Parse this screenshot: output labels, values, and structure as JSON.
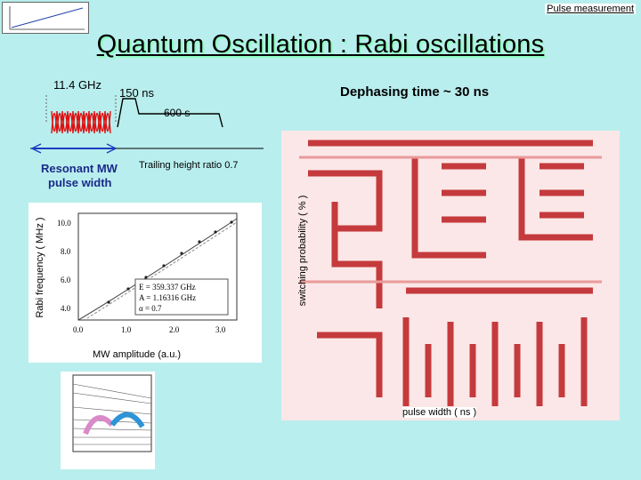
{
  "header": {
    "nav_link": "Pulse measurement",
    "title": "Quantum Oscillation : Rabi oscillations"
  },
  "pulse_diagram": {
    "freq_label": "11.4 GHz",
    "duration_label": "150 ns",
    "trailing_label": "600 s",
    "dephasing_label": "Dephasing time ~ 30 ns",
    "resonant_label": "Resonant MW",
    "pulse_width_label": "pulse width",
    "trailing_ratio_label": "Trailing height ratio 0.7"
  },
  "rabi_plot": {
    "y_label": "Rabi frequency ( MHz )",
    "x_label": "MW amplitude (a.u.)",
    "y_ticks": [
      "4.0",
      "6.0",
      "8.0",
      "10.0"
    ],
    "x_ticks": [
      "0.0",
      "1.0",
      "2.0",
      "3.0"
    ],
    "fit_params": [
      "E = 359.337 GHz",
      "A = 1.16316 GHz",
      "α = 0.7"
    ]
  },
  "prob_plot": {
    "y_label": "switching probability ( % )",
    "x_label": "pulse width ( ns )"
  },
  "colors": {
    "background": "#b9eeee",
    "pulse_red": "#e01010",
    "pattern_red": "#c0282a"
  }
}
